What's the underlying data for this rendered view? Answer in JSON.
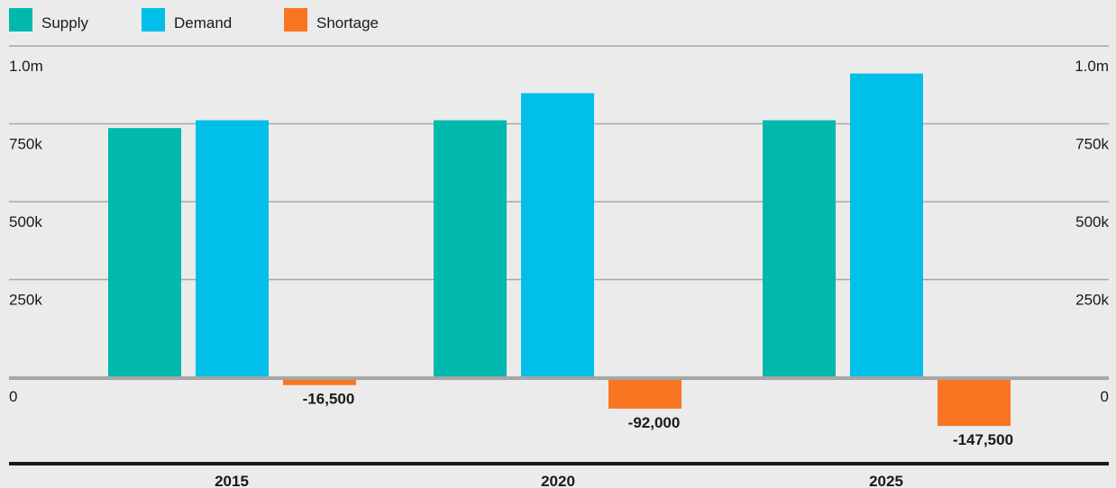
{
  "colors": {
    "background": "#ebebeb",
    "supply": "#00b8ad",
    "demand": "#00bfe8",
    "shortage": "#f97522",
    "gridline": "#a6a6a6",
    "baseline": "#a6a6a6",
    "axis_bottom": "#1a1a1a"
  },
  "chart_data": {
    "type": "bar",
    "categories": [
      "2015",
      "2020",
      "2025"
    ],
    "series": [
      {
        "name": "Supply",
        "color": "#00b8ad",
        "values": [
          800000,
          825000,
          825000
        ]
      },
      {
        "name": "Demand",
        "color": "#00bfe8",
        "values": [
          825000,
          912000,
          975000
        ]
      },
      {
        "name": "Shortage",
        "color": "#f97522",
        "values": [
          -16500,
          -92000,
          -147500
        ]
      }
    ],
    "data_labels": [
      "-16,500",
      "-92,000",
      "-147,500"
    ],
    "ylim": [
      -175000,
      1000000
    ],
    "yticks": [
      0,
      250000,
      500000,
      750000,
      1000000
    ],
    "ytick_labels": [
      "0",
      "250k",
      "500k",
      "750k",
      "1.0m"
    ],
    "legend_position": "top-left",
    "grid": true,
    "title": "",
    "xlabel": "",
    "ylabel": ""
  }
}
